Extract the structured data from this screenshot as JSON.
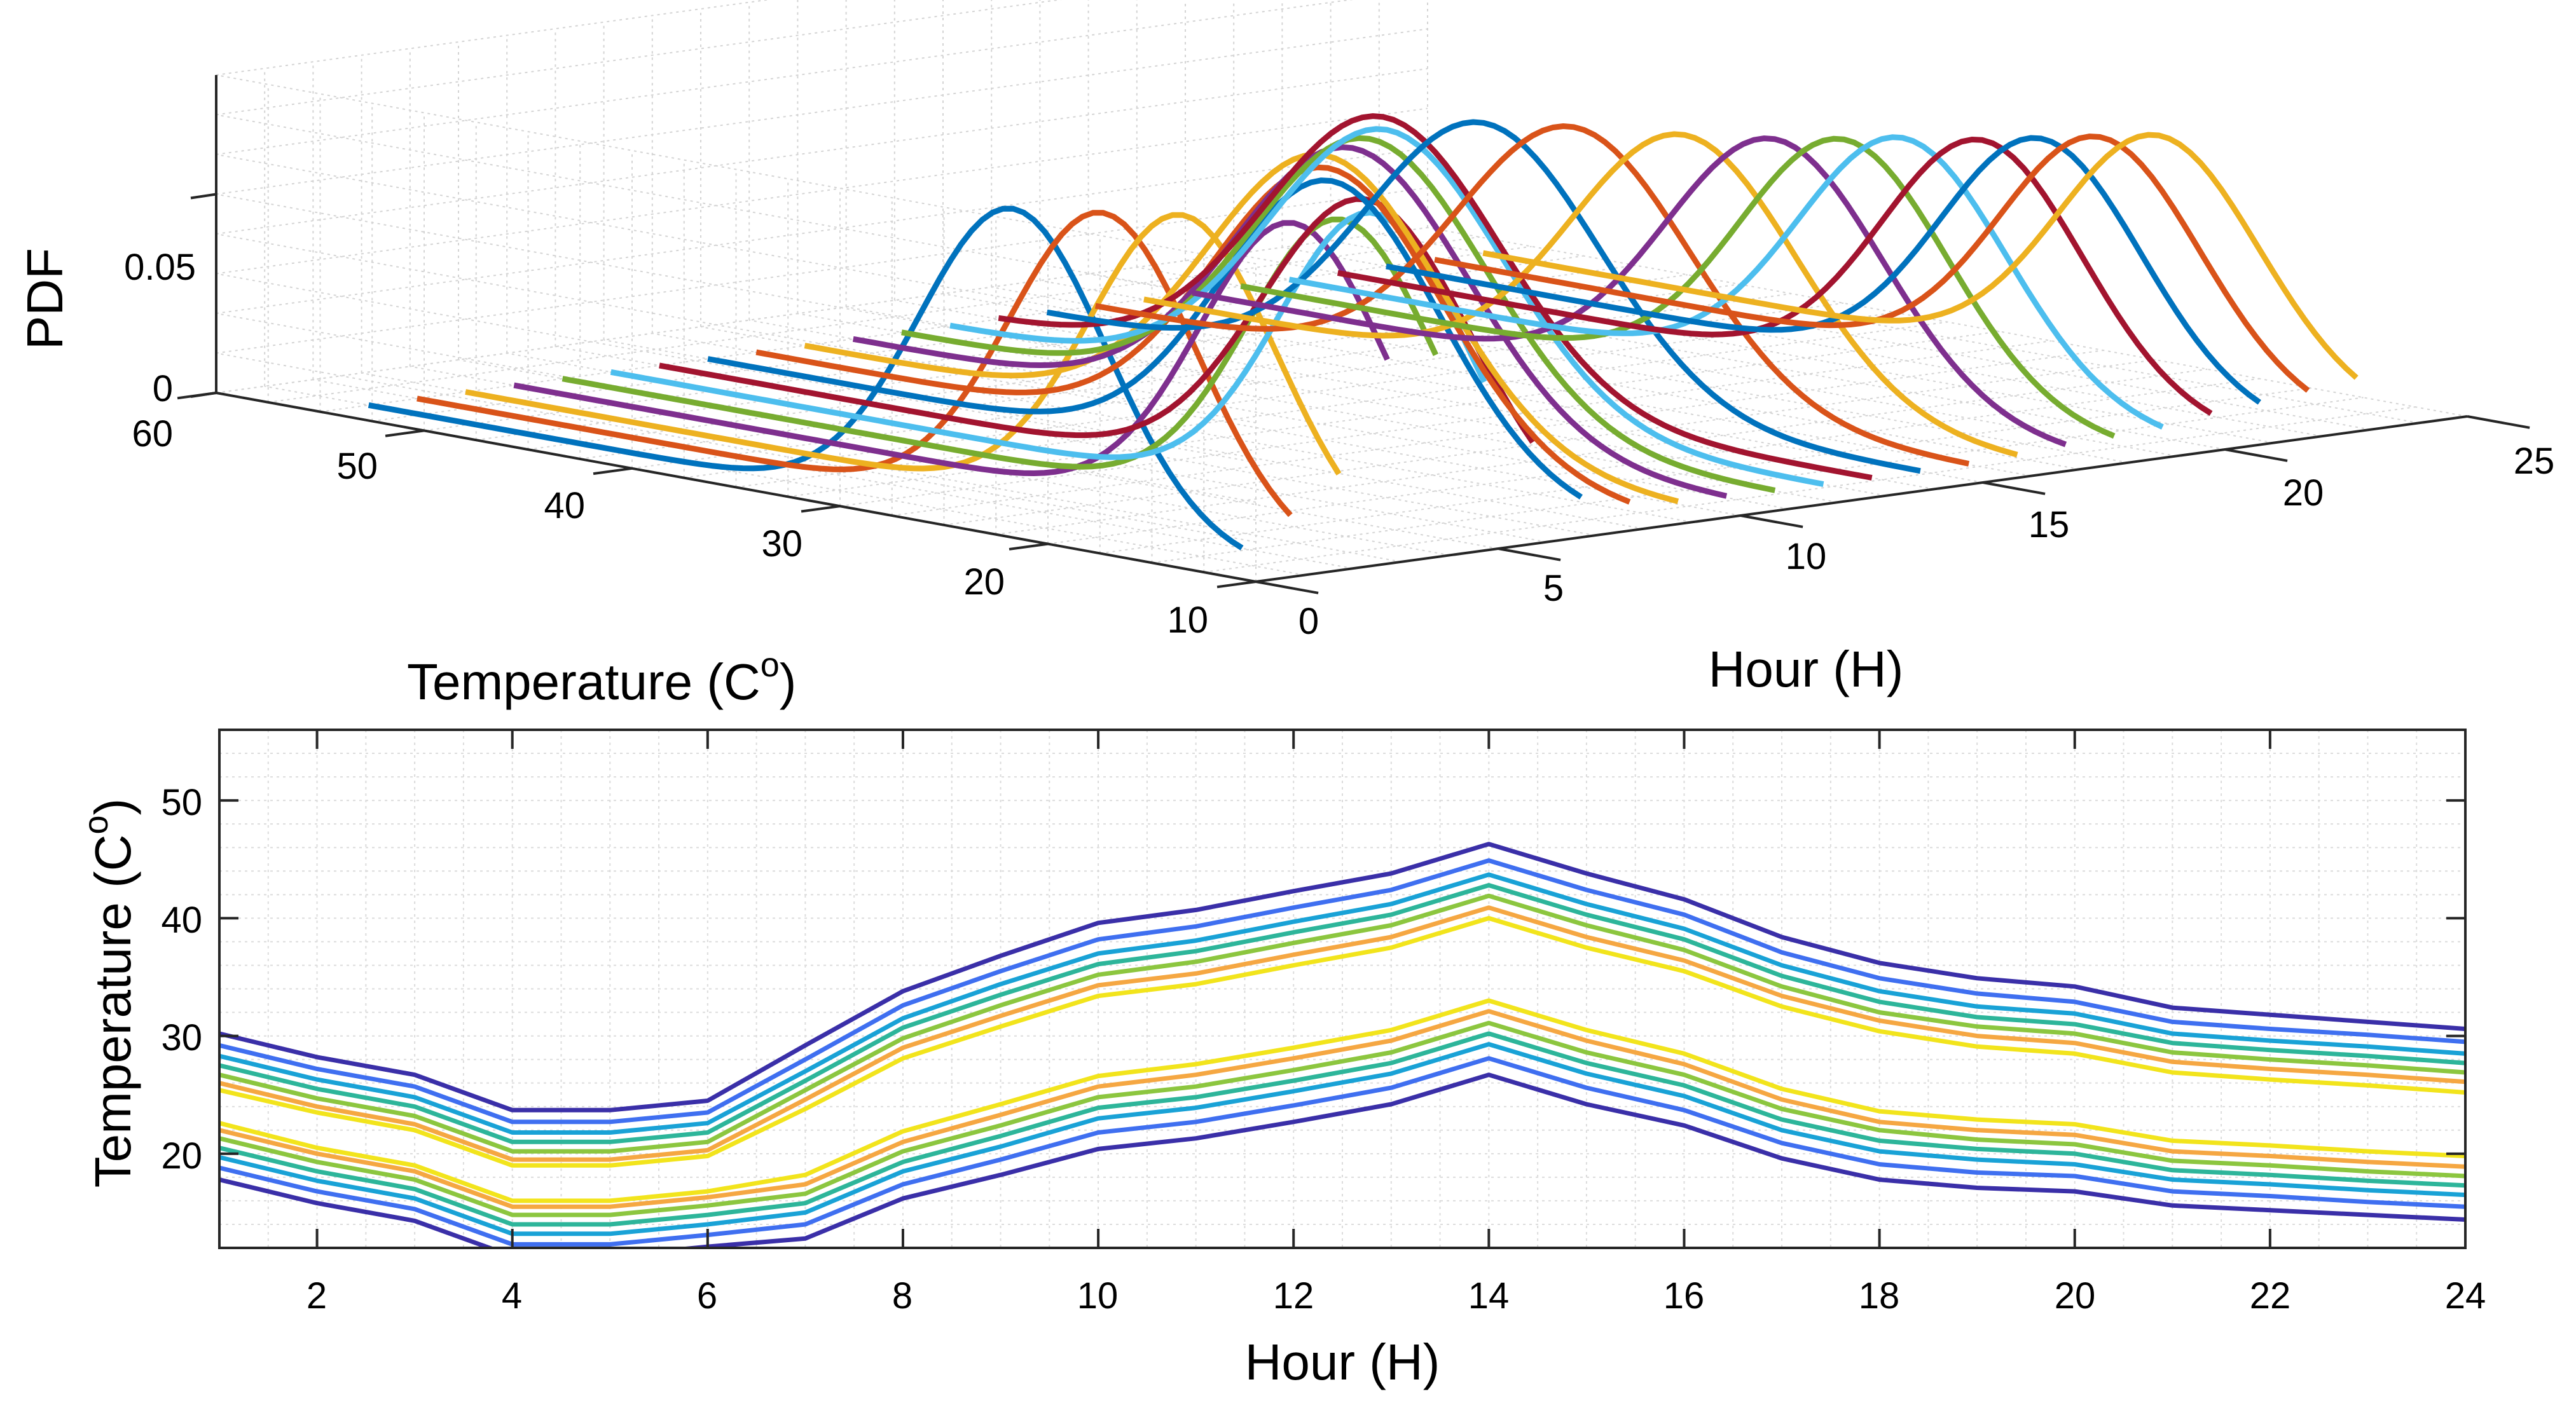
{
  "chart_data": [
    {
      "type": "surface-3d-ridgeline",
      "zlabel": "PDF",
      "xlabel": "Hour (H)",
      "ylabel_main": "Temperature (C",
      "ylabel_sup": "o",
      "ylabel_close": ")",
      "x_ticks": [
        "0",
        "5",
        "10",
        "15",
        "20",
        "25"
      ],
      "y_ticks": [
        "60",
        "50",
        "40",
        "30",
        "20",
        "10"
      ],
      "z_ticks": [
        "0",
        "0.05"
      ],
      "xlim": [
        0,
        25
      ],
      "ylim": [
        10,
        60
      ],
      "zlim": [
        0,
        0.08
      ],
      "grid": true,
      "series_colors": [
        "#0072BD",
        "#D95319",
        "#EDB120",
        "#7E2F8E",
        "#77AC30",
        "#4DBEEE",
        "#A2142F"
      ],
      "hours": [
        1,
        2,
        3,
        4,
        5,
        6,
        7,
        8,
        9,
        10,
        11,
        12,
        13,
        14,
        15,
        16,
        17,
        18,
        19,
        20,
        21,
        22,
        23,
        24
      ],
      "mean_temperature": [
        24,
        22,
        20.5,
        17.5,
        17.5,
        18.3,
        21,
        25,
        27.5,
        30,
        31,
        32.5,
        34,
        36.5,
        34,
        32,
        29,
        27,
        26,
        25.5,
        24,
        23.5,
        23,
        22.5
      ],
      "sd": [
        4.5,
        4.5,
        4.5,
        4.5,
        4.5,
        4.5,
        5,
        5.2,
        5.5,
        5.6,
        5.6,
        5.6,
        5.6,
        5.6,
        5.6,
        5.6,
        5.4,
        5.2,
        5,
        5,
        4.8,
        4.8,
        4.8,
        4.8
      ],
      "peak_pdf": [
        0.0789,
        0.0781,
        0.0773,
        0.0765,
        0.0757,
        0.0749,
        0.0741,
        0.0733,
        0.0725,
        0.0717,
        0.0709,
        0.0701,
        0.0693,
        0.0685,
        0.0677,
        0.0669,
        0.0661,
        0.0653,
        0.0645,
        0.0637,
        0.0629,
        0.0621,
        0.0613,
        0.0605
      ]
    },
    {
      "type": "line",
      "xlabel": "Hour (H)",
      "ylabel_main": "Temperature (C",
      "ylabel_sup": "o",
      "ylabel_close": ")",
      "xlim": [
        1,
        24
      ],
      "ylim": [
        12,
        56
      ],
      "x_ticks": [
        "2",
        "4",
        "6",
        "8",
        "10",
        "12",
        "14",
        "16",
        "18",
        "20",
        "22",
        "24"
      ],
      "y_ticks": [
        "20",
        "30",
        "40",
        "50"
      ],
      "grid": true,
      "x": [
        1,
        2,
        3,
        4,
        5,
        6,
        7,
        8,
        9,
        10,
        11,
        12,
        13,
        14,
        15,
        16,
        17,
        18,
        19,
        20,
        21,
        22,
        23,
        24
      ],
      "center": [
        24,
        22,
        20.5,
        17.5,
        17.5,
        18.3,
        21,
        25,
        27.5,
        30,
        31,
        32.5,
        34,
        36.5,
        34,
        32,
        29,
        27,
        26,
        25.5,
        24,
        23.5,
        23,
        22.5
      ],
      "bands": [
        {
          "offsets": [
            1.4,
            1.5,
            1.5,
            1.5,
            1.5,
            1.5,
            2.8,
            3.1,
            3.3,
            3.4,
            3.4,
            3.5,
            3.5,
            3.5,
            3.5,
            3.5,
            3.5,
            3.4,
            3.1,
            3,
            2.9,
            2.8,
            2.8,
            2.7
          ],
          "color": "#f2e41c"
        },
        {
          "offsets": [
            2,
            2,
            2,
            2,
            2,
            2,
            3.6,
            4,
            4.2,
            4.3,
            4.3,
            4.4,
            4.4,
            4.4,
            4.4,
            4.4,
            4.4,
            4.3,
            4,
            3.9,
            3.8,
            3.7,
            3.7,
            3.6
          ],
          "color": "#f5a742"
        },
        {
          "offsets": [
            2.7,
            2.7,
            2.7,
            2.7,
            2.7,
            2.7,
            4.4,
            4.8,
            5.1,
            5.2,
            5.3,
            5.4,
            5.4,
            5.4,
            5.4,
            5.3,
            5.2,
            5,
            4.8,
            4.7,
            4.6,
            4.5,
            4.5,
            4.4
          ],
          "color": "#8cc63f"
        },
        {
          "offsets": [
            3.5,
            3.5,
            3.5,
            3.5,
            3.5,
            3.5,
            5.2,
            5.7,
            6,
            6.1,
            6.2,
            6.3,
            6.3,
            6.3,
            6.3,
            6.2,
            6.1,
            5.9,
            5.6,
            5.5,
            5.4,
            5.3,
            5.3,
            5.2
          ],
          "color": "#2db59a"
        },
        {
          "offsets": [
            4.3,
            4.3,
            4.3,
            4.3,
            4.3,
            4.3,
            6,
            6.5,
            6.9,
            7,
            7.1,
            7.2,
            7.2,
            7.2,
            7.2,
            7.1,
            7,
            6.8,
            6.5,
            6.4,
            6.2,
            6.1,
            6.1,
            6
          ],
          "color": "#19a2d6"
        },
        {
          "offsets": [
            5.2,
            5.2,
            5.2,
            5.2,
            5.2,
            5.2,
            7,
            7.6,
            8,
            8.2,
            8.3,
            8.4,
            8.4,
            8.4,
            8.4,
            8.3,
            8.1,
            7.9,
            7.6,
            7.4,
            7.2,
            7.1,
            7.1,
            7
          ],
          "color": "#3f6ff0"
        },
        {
          "offsets": [
            6.2,
            6.2,
            6.2,
            6.2,
            6.2,
            6.2,
            8.2,
            8.8,
            9.3,
            9.6,
            9.7,
            9.8,
            9.8,
            9.8,
            9.8,
            9.6,
            9.4,
            9.2,
            8.9,
            8.7,
            8.4,
            8.3,
            8.2,
            8.1
          ],
          "color": "#3a2fa8"
        }
      ]
    }
  ]
}
